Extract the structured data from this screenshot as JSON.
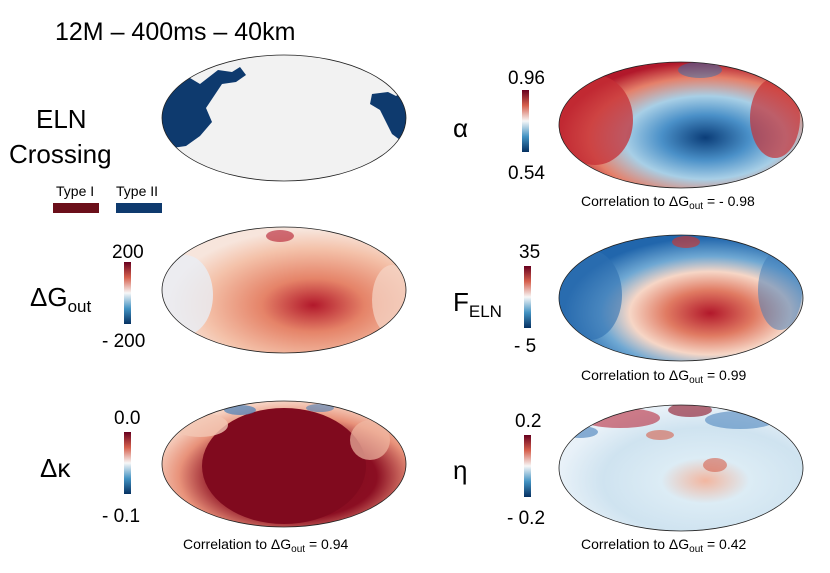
{
  "figure": {
    "title": "12M – 400ms – 40km"
  },
  "colors": {
    "type1": "#6b0f1a",
    "type2": "#0e3a6e",
    "red": "#b2182b",
    "blue": "#2166ac",
    "neutral": "#f7f7f7"
  },
  "panels": {
    "eln": {
      "label_line1": "ELN",
      "label_line2": "Crossing",
      "legend_type1": "Type I",
      "legend_type2": "Type II"
    },
    "dgout": {
      "symbol": "ΔG",
      "subscript": "out",
      "cbar_max": "200",
      "cbar_min": "- 200"
    },
    "dkappa": {
      "symbol": "Δκ",
      "cbar_max": "0.0",
      "cbar_min": "- 0.1",
      "corr_prefix": "Correlation to ΔG",
      "corr_sub": "out",
      "corr_value": " = 0.94"
    },
    "alpha": {
      "symbol": "α",
      "cbar_max": "0.96",
      "cbar_min": "0.54",
      "corr_prefix": "Correlation to ΔG",
      "corr_sub": "out",
      "corr_value": " = - 0.98"
    },
    "feln": {
      "symbol": "F",
      "subscript": "ELN",
      "cbar_max": "35",
      "cbar_min": "- 5",
      "corr_prefix": "Correlation to ΔG",
      "corr_sub": "out",
      "corr_value": " = 0.99"
    },
    "eta": {
      "symbol": "η",
      "cbar_max": "0.2",
      "cbar_min": "- 0.2",
      "corr_prefix": "Correlation to ΔG",
      "corr_sub": "out",
      "corr_value": " = 0.42"
    }
  }
}
